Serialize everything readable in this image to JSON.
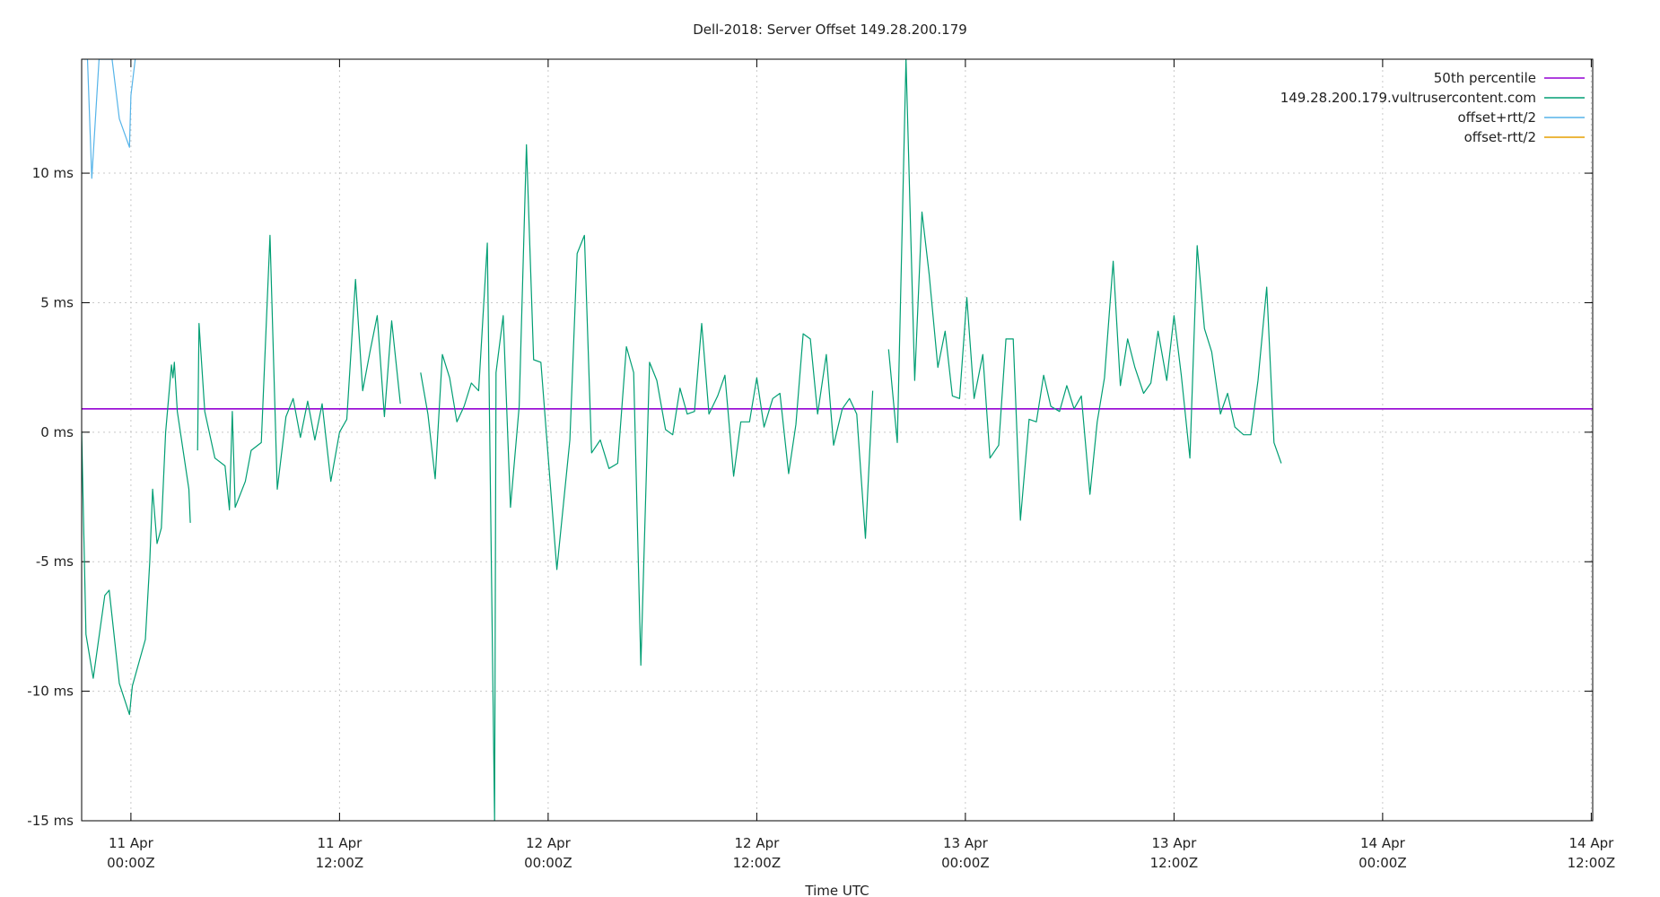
{
  "chart_data": {
    "type": "line",
    "title": "Dell-2018: Server Offset 149.28.200.179",
    "xlabel": "Time UTC",
    "ylabel": "",
    "y_unit": "ms",
    "ylim": [
      -15,
      14.4
    ],
    "xlim": [
      "2018-04-10T21:10Z",
      "2018-04-14T12:05Z"
    ],
    "grid": true,
    "legend_position": "top-right",
    "y_ticks": [
      {
        "value": -15,
        "label": "-15 ms"
      },
      {
        "value": -10,
        "label": "-10 ms"
      },
      {
        "value": -5,
        "label": "-5 ms"
      },
      {
        "value": 0,
        "label": "0 ms"
      },
      {
        "value": 5,
        "label": "5 ms"
      },
      {
        "value": 10,
        "label": "10 ms"
      }
    ],
    "x_ticks": [
      {
        "value": "2018-04-11T00:00Z",
        "line1": "11 Apr",
        "line2": "00:00Z"
      },
      {
        "value": "2018-04-11T12:00Z",
        "line1": "11 Apr",
        "line2": "12:00Z"
      },
      {
        "value": "2018-04-12T00:00Z",
        "line1": "12 Apr",
        "line2": "00:00Z"
      },
      {
        "value": "2018-04-12T12:00Z",
        "line1": "12 Apr",
        "line2": "12:00Z"
      },
      {
        "value": "2018-04-13T00:00Z",
        "line1": "13 Apr",
        "line2": "00:00Z"
      },
      {
        "value": "2018-04-13T12:00Z",
        "line1": "13 Apr",
        "line2": "12:00Z"
      },
      {
        "value": "2018-04-14T00:00Z",
        "line1": "14 Apr",
        "line2": "00:00Z"
      },
      {
        "value": "2018-04-14T12:00Z",
        "line1": "14 Apr",
        "line2": "12:00Z"
      }
    ],
    "series": [
      {
        "name": "50th percentile",
        "color": "#9400d3",
        "kind": "constant",
        "value": 0.9
      },
      {
        "name": "149.28.200.179.vultrusercontent.com",
        "color": "#009e73",
        "segments": [
          [
            [
              "2018-04-10T21:10Z",
              0.0
            ],
            [
              "2018-04-10T21:25Z",
              -7.8
            ],
            [
              "2018-04-10T21:50Z",
              -9.5
            ],
            [
              "2018-04-10T22:30Z",
              -6.3
            ],
            [
              "2018-04-10T22:45Z",
              -6.1
            ],
            [
              "2018-04-10T23:20Z",
              -9.7
            ],
            [
              "2018-04-10T23:55Z",
              -10.9
            ],
            [
              "2018-04-11T00:05Z",
              -9.8
            ],
            [
              "2018-04-11T00:50Z",
              -8.0
            ],
            [
              "2018-04-11T01:05Z",
              -5.0
            ],
            [
              "2018-04-11T01:15Z",
              -2.2
            ],
            [
              "2018-04-11T01:30Z",
              -4.3
            ],
            [
              "2018-04-11T01:45Z",
              -3.7
            ],
            [
              "2018-04-11T02:00Z",
              0.0
            ],
            [
              "2018-04-11T02:20Z",
              2.6
            ],
            [
              "2018-04-11T02:25Z",
              2.1
            ],
            [
              "2018-04-11T02:30Z",
              2.7
            ],
            [
              "2018-04-11T02:40Z",
              0.8
            ],
            [
              "2018-04-11T03:20Z",
              -2.2
            ],
            [
              "2018-04-11T03:25Z",
              -3.5
            ]
          ],
          [
            [
              "2018-04-11T03:50Z",
              -0.7
            ],
            [
              "2018-04-11T03:55Z",
              4.2
            ],
            [
              "2018-04-11T04:15Z",
              0.8
            ],
            [
              "2018-04-11T04:50Z",
              -1.0
            ],
            [
              "2018-04-11T05:25Z",
              -1.3
            ],
            [
              "2018-04-11T05:40Z",
              -3.0
            ],
            [
              "2018-04-11T05:50Z",
              0.8
            ],
            [
              "2018-04-11T06:00Z",
              -2.9
            ],
            [
              "2018-04-11T06:35Z",
              -1.9
            ],
            [
              "2018-04-11T06:55Z",
              -0.7
            ],
            [
              "2018-04-11T07:30Z",
              -0.4
            ],
            [
              "2018-04-11T08:00Z",
              7.6
            ],
            [
              "2018-04-11T08:25Z",
              -2.2
            ],
            [
              "2018-04-11T08:55Z",
              0.6
            ],
            [
              "2018-04-11T09:20Z",
              1.3
            ],
            [
              "2018-04-11T09:45Z",
              -0.2
            ],
            [
              "2018-04-11T10:10Z",
              1.2
            ],
            [
              "2018-04-11T10:35Z",
              -0.3
            ],
            [
              "2018-04-11T11:00Z",
              1.1
            ],
            [
              "2018-04-11T11:30Z",
              -1.9
            ],
            [
              "2018-04-11T12:00Z",
              0.0
            ],
            [
              "2018-04-11T12:25Z",
              0.5
            ],
            [
              "2018-04-11T12:55Z",
              5.9
            ],
            [
              "2018-04-11T13:20Z",
              1.6
            ],
            [
              "2018-04-11T13:45Z",
              3.1
            ],
            [
              "2018-04-11T14:10Z",
              4.5
            ],
            [
              "2018-04-11T14:35Z",
              0.6
            ],
            [
              "2018-04-11T15:00Z",
              4.3
            ],
            [
              "2018-04-11T15:30Z",
              1.1
            ]
          ],
          [
            [
              "2018-04-11T16:40Z",
              2.3
            ],
            [
              "2018-04-11T17:05Z",
              0.7
            ],
            [
              "2018-04-11T17:30Z",
              -1.8
            ],
            [
              "2018-04-11T17:55Z",
              3.0
            ],
            [
              "2018-04-11T18:20Z",
              2.1
            ],
            [
              "2018-04-11T18:45Z",
              0.4
            ],
            [
              "2018-04-11T19:10Z",
              1.0
            ],
            [
              "2018-04-11T19:35Z",
              1.9
            ],
            [
              "2018-04-11T20:00Z",
              1.6
            ],
            [
              "2018-04-11T20:30Z",
              7.3
            ],
            [
              "2018-04-11T20:55Z",
              -15.0
            ],
            [
              "2018-04-11T21:00Z",
              2.3
            ],
            [
              "2018-04-11T21:25Z",
              4.5
            ],
            [
              "2018-04-11T21:50Z",
              -2.9
            ],
            [
              "2018-04-11T22:20Z",
              1.0
            ],
            [
              "2018-04-11T22:45Z",
              11.1
            ],
            [
              "2018-04-11T23:10Z",
              2.8
            ],
            [
              "2018-04-11T23:35Z",
              2.7
            ],
            [
              "2018-04-12T00:30Z",
              -5.3
            ],
            [
              "2018-04-12T01:15Z",
              -0.3
            ],
            [
              "2018-04-12T01:40Z",
              6.9
            ],
            [
              "2018-04-12T02:05Z",
              7.6
            ],
            [
              "2018-04-12T02:30Z",
              -0.8
            ],
            [
              "2018-04-12T03:00Z",
              -0.3
            ],
            [
              "2018-04-12T03:30Z",
              -1.4
            ],
            [
              "2018-04-12T04:00Z",
              -1.2
            ],
            [
              "2018-04-12T04:30Z",
              3.3
            ],
            [
              "2018-04-12T04:55Z",
              2.3
            ],
            [
              "2018-04-12T05:20Z",
              -9.0
            ],
            [
              "2018-04-12T05:50Z",
              2.7
            ],
            [
              "2018-04-12T06:15Z",
              2.0
            ],
            [
              "2018-04-12T06:45Z",
              0.1
            ],
            [
              "2018-04-12T07:10Z",
              -0.1
            ],
            [
              "2018-04-12T07:35Z",
              1.7
            ],
            [
              "2018-04-12T08:00Z",
              0.7
            ],
            [
              "2018-04-12T08:25Z",
              0.8
            ],
            [
              "2018-04-12T08:50Z",
              4.2
            ],
            [
              "2018-04-12T09:15Z",
              0.7
            ],
            [
              "2018-04-12T09:45Z",
              1.4
            ],
            [
              "2018-04-12T10:10Z",
              2.2
            ],
            [
              "2018-04-12T10:40Z",
              -1.7
            ],
            [
              "2018-04-12T11:05Z",
              0.4
            ],
            [
              "2018-04-12T11:35Z",
              0.4
            ],
            [
              "2018-04-12T12:00Z",
              2.1
            ],
            [
              "2018-04-12T12:25Z",
              0.2
            ],
            [
              "2018-04-12T12:55Z",
              1.3
            ],
            [
              "2018-04-12T13:20Z",
              1.5
            ],
            [
              "2018-04-12T13:50Z",
              -1.6
            ],
            [
              "2018-04-12T14:15Z",
              0.3
            ],
            [
              "2018-04-12T14:40Z",
              3.8
            ],
            [
              "2018-04-12T15:05Z",
              3.6
            ],
            [
              "2018-04-12T15:30Z",
              0.7
            ],
            [
              "2018-04-12T16:00Z",
              3.0
            ],
            [
              "2018-04-12T16:25Z",
              -0.5
            ],
            [
              "2018-04-12T16:55Z",
              0.9
            ],
            [
              "2018-04-12T17:20Z",
              1.3
            ],
            [
              "2018-04-12T17:45Z",
              0.7
            ],
            [
              "2018-04-12T18:15Z",
              -4.1
            ],
            [
              "2018-04-12T18:40Z",
              1.6
            ]
          ],
          [
            [
              "2018-04-12T19:35Z",
              3.2
            ],
            [
              "2018-04-12T20:05Z",
              -0.4
            ],
            [
              "2018-04-12T20:35Z",
              14.4
            ],
            [
              "2018-04-12T21:05Z",
              2.0
            ],
            [
              "2018-04-12T21:30Z",
              8.5
            ],
            [
              "2018-04-12T21:55Z",
              6.1
            ],
            [
              "2018-04-12T22:25Z",
              2.5
            ],
            [
              "2018-04-12T22:50Z",
              3.9
            ],
            [
              "2018-04-12T23:15Z",
              1.4
            ],
            [
              "2018-04-12T23:40Z",
              1.3
            ],
            [
              "2018-04-13T00:05Z",
              5.2
            ],
            [
              "2018-04-13T00:30Z",
              1.3
            ],
            [
              "2018-04-13T01:00Z",
              3.0
            ],
            [
              "2018-04-13T01:25Z",
              -1.0
            ],
            [
              "2018-04-13T01:55Z",
              -0.5
            ],
            [
              "2018-04-13T02:20Z",
              3.6
            ],
            [
              "2018-04-13T02:45Z",
              3.6
            ],
            [
              "2018-04-13T03:10Z",
              -3.4
            ],
            [
              "2018-04-13T03:40Z",
              0.5
            ],
            [
              "2018-04-13T04:05Z",
              0.4
            ],
            [
              "2018-04-13T04:30Z",
              2.2
            ],
            [
              "2018-04-13T04:55Z",
              1.0
            ],
            [
              "2018-04-13T05:25Z",
              0.8
            ],
            [
              "2018-04-13T05:50Z",
              1.8
            ],
            [
              "2018-04-13T06:15Z",
              0.9
            ],
            [
              "2018-04-13T06:40Z",
              1.4
            ],
            [
              "2018-04-13T07:10Z",
              -2.4
            ],
            [
              "2018-04-13T07:35Z",
              0.4
            ],
            [
              "2018-04-13T08:00Z",
              2.1
            ],
            [
              "2018-04-13T08:30Z",
              6.6
            ],
            [
              "2018-04-13T08:55Z",
              1.8
            ],
            [
              "2018-04-13T09:20Z",
              3.6
            ],
            [
              "2018-04-13T09:45Z",
              2.5
            ],
            [
              "2018-04-13T10:15Z",
              1.5
            ],
            [
              "2018-04-13T10:40Z",
              1.9
            ],
            [
              "2018-04-13T11:05Z",
              3.9
            ],
            [
              "2018-04-13T11:35Z",
              2.0
            ],
            [
              "2018-04-13T12:00Z",
              4.5
            ],
            [
              "2018-04-13T12:25Z",
              2.2
            ],
            [
              "2018-04-13T12:55Z",
              -1.0
            ],
            [
              "2018-04-13T13:20Z",
              7.2
            ],
            [
              "2018-04-13T13:45Z",
              4.0
            ],
            [
              "2018-04-13T14:10Z",
              3.1
            ],
            [
              "2018-04-13T14:40Z",
              0.7
            ],
            [
              "2018-04-13T15:05Z",
              1.5
            ],
            [
              "2018-04-13T15:30Z",
              0.2
            ],
            [
              "2018-04-13T16:00Z",
              -0.1
            ],
            [
              "2018-04-13T16:25Z",
              -0.1
            ],
            [
              "2018-04-13T16:50Z",
              2.0
            ],
            [
              "2018-04-13T17:20Z",
              5.6
            ],
            [
              "2018-04-13T17:45Z",
              -0.4
            ],
            [
              "2018-04-13T18:10Z",
              -1.2
            ]
          ]
        ]
      },
      {
        "name": "offset+rtt/2",
        "color": "#56b4e9",
        "segments": [
          [
            [
              "2018-04-10T21:15Z",
              14.4
            ],
            [
              "2018-04-10T21:30Z",
              14.4
            ],
            [
              "2018-04-10T21:45Z",
              9.8
            ],
            [
              "2018-04-10T22:10Z",
              14.4
            ],
            [
              "2018-04-10T22:55Z",
              14.4
            ],
            [
              "2018-04-10T23:20Z",
              12.1
            ],
            [
              "2018-04-10T23:55Z",
              11.0
            ],
            [
              "2018-04-11T00:00Z",
              13.0
            ],
            [
              "2018-04-11T00:15Z",
              14.4
            ]
          ]
        ]
      },
      {
        "name": "offset-rtt/2",
        "color": "#e69f00",
        "segments": []
      }
    ]
  }
}
